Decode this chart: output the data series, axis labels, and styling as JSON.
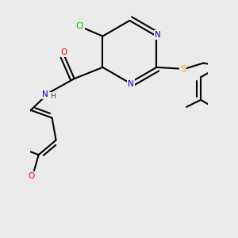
{
  "background_color": "#ebebeb",
  "atom_colors": {
    "C": "#000000",
    "N": "#0000cc",
    "O": "#ff0000",
    "S": "#ccaa00",
    "Cl": "#00bb00",
    "H": "#444444"
  },
  "figsize": [
    3.0,
    3.0
  ],
  "dpi": 100
}
